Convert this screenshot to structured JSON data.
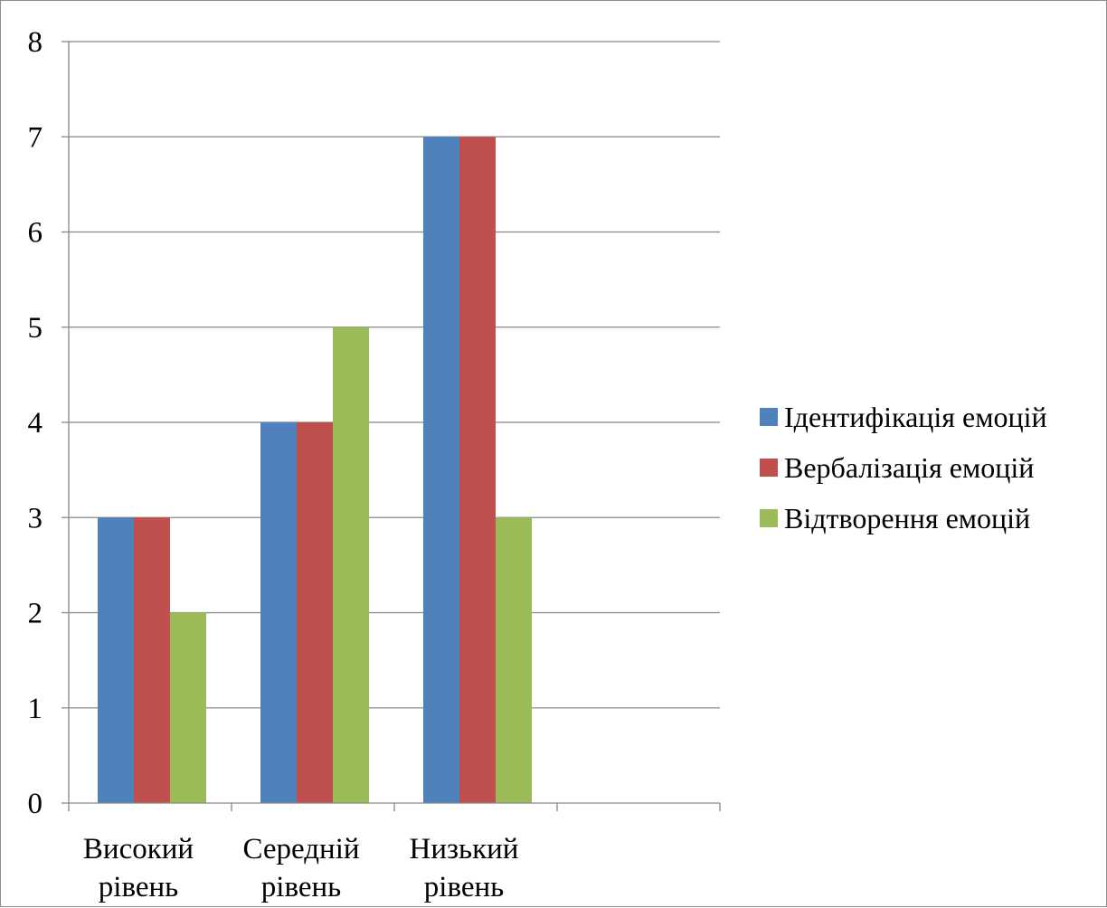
{
  "chart_data": {
    "type": "bar",
    "categories": [
      [
        "Високий",
        "рівень"
      ],
      [
        "Середній",
        "рівень"
      ],
      [
        "Низький",
        "рівень"
      ],
      [
        "",
        ""
      ]
    ],
    "series": [
      {
        "name": "Ідентифікація емоцій",
        "color": "#4f81bd",
        "values": [
          3,
          4,
          7,
          null
        ]
      },
      {
        "name": "Вербалізація емоцій",
        "color": "#c0504d",
        "values": [
          3,
          4,
          7,
          null
        ]
      },
      {
        "name": "Відтворення емоцій",
        "color": "#9bbb59",
        "values": [
          2,
          5,
          3,
          null
        ]
      }
    ],
    "ylim": [
      0,
      8
    ],
    "yticks": [
      "0",
      "1",
      "2",
      "3",
      "4",
      "5",
      "6",
      "7",
      "8"
    ],
    "grid": true,
    "legend_position": "right"
  }
}
